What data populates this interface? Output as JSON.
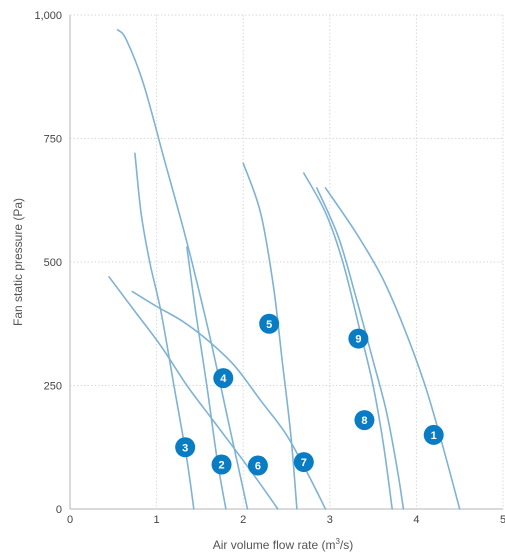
{
  "chart_data": {
    "type": "line",
    "xlabel_prefix": "Air volume flow rate (m",
    "xlabel_sup": "3",
    "xlabel_suffix": "/s)",
    "ylabel": "Fan static pressure (Pa)",
    "xlim": [
      0,
      5
    ],
    "ylim": [
      0,
      1000
    ],
    "x_ticks": [
      "0",
      "1",
      "2",
      "3",
      "4",
      "5"
    ],
    "y_ticks": [
      "0",
      "250",
      "500",
      "750",
      "1,000"
    ],
    "grid": true,
    "line_color": "#7fb3d3",
    "marker_color": "#0a7cc4",
    "series": [
      {
        "x": [
          0.55,
          0.65,
          0.85,
          1.1,
          1.35,
          1.6,
          1.85,
          2.05
        ],
        "y": [
          970,
          950,
          860,
          700,
          540,
          360,
          160,
          0
        ]
      },
      {
        "x": [
          0.75,
          0.82,
          0.92,
          1.05,
          1.2,
          1.35,
          1.43
        ],
        "y": [
          720,
          600,
          500,
          400,
          250,
          100,
          0
        ]
      },
      {
        "x": [
          1.35,
          1.45,
          1.58,
          1.7,
          1.8
        ],
        "y": [
          530,
          400,
          250,
          100,
          0
        ]
      },
      {
        "x": [
          2.0,
          2.2,
          2.35,
          2.45,
          2.55,
          2.62
        ],
        "y": [
          700,
          600,
          450,
          300,
          150,
          0
        ]
      },
      {
        "x": [
          2.7,
          2.95,
          3.15,
          3.35,
          3.5,
          3.62,
          3.72
        ],
        "y": [
          680,
          600,
          500,
          360,
          250,
          130,
          0
        ]
      },
      {
        "x": [
          2.85,
          3.1,
          3.3,
          3.5,
          3.65,
          3.78,
          3.85
        ],
        "y": [
          650,
          550,
          430,
          300,
          200,
          80,
          0
        ]
      },
      {
        "x": [
          2.95,
          3.3,
          3.6,
          3.85,
          4.1,
          4.3,
          4.5
        ],
        "y": [
          650,
          560,
          470,
          370,
          250,
          130,
          0
        ]
      },
      {
        "x": [
          0.45,
          0.75,
          1.05,
          1.35,
          1.65,
          1.95,
          2.2,
          2.4
        ],
        "y": [
          470,
          400,
          330,
          250,
          180,
          110,
          50,
          0
        ]
      },
      {
        "x": [
          0.72,
          1.0,
          1.3,
          1.6,
          1.9,
          2.2,
          2.5,
          2.75,
          2.95
        ],
        "y": [
          440,
          410,
          380,
          340,
          290,
          220,
          150,
          70,
          0
        ]
      }
    ],
    "markers": [
      {
        "label": "1",
        "x": 4.2,
        "y": 150
      },
      {
        "label": "2",
        "x": 1.75,
        "y": 90
      },
      {
        "label": "3",
        "x": 1.33,
        "y": 125
      },
      {
        "label": "4",
        "x": 1.77,
        "y": 265
      },
      {
        "label": "5",
        "x": 2.3,
        "y": 375
      },
      {
        "label": "6",
        "x": 2.17,
        "y": 88
      },
      {
        "label": "7",
        "x": 2.7,
        "y": 95
      },
      {
        "label": "8",
        "x": 3.4,
        "y": 180
      },
      {
        "label": "9",
        "x": 3.33,
        "y": 345
      }
    ]
  }
}
